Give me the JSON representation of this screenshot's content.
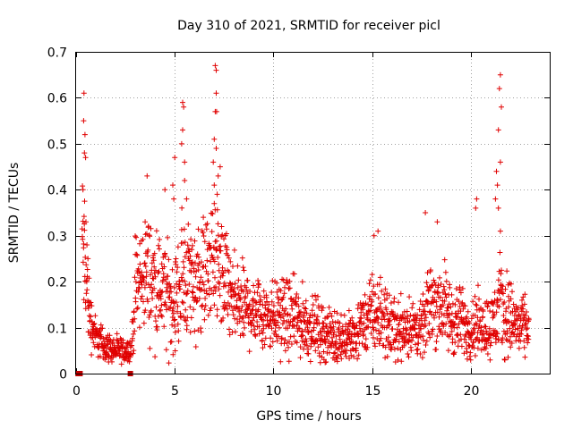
{
  "chart_data": {
    "type": "scatter",
    "title": "Day 310 of 2021, SRMTID for receiver picl",
    "xlabel": "GPS time / hours",
    "ylabel": "SRMTID / TECUs",
    "xlim": [
      0,
      24
    ],
    "ylim": [
      0,
      0.7
    ],
    "xticks": [
      0,
      5,
      10,
      15,
      20
    ],
    "xtick_labels": [
      "0",
      "5",
      "10",
      "15",
      "20"
    ],
    "yticks": [
      0,
      0.1,
      0.2,
      0.3,
      0.4,
      0.5,
      0.6,
      0.7
    ],
    "ytick_labels": [
      "0",
      "0.1",
      "0.2",
      "0.3",
      "0.4",
      "0.5",
      "0.6",
      "0.7"
    ],
    "grid": true,
    "marker": "plus",
    "color": "#e00000",
    "square_marker_color": "#c00000",
    "zero_squares_x": [
      0.1,
      0.15,
      0.2,
      2.75
    ],
    "envelope": {
      "x": [
        0.0,
        0.3,
        0.5,
        0.7,
        1.0,
        1.5,
        2.0,
        2.5,
        2.8,
        3.0,
        3.5,
        4.0,
        4.5,
        5.0,
        5.5,
        6.0,
        6.5,
        7.0,
        7.5,
        8.0,
        9.0,
        10.0,
        11.0,
        12.0,
        13.0,
        14.0,
        15.0,
        15.5,
        16.0,
        17.0,
        17.5,
        18.0,
        18.5,
        19.0,
        20.0,
        20.5,
        21.0,
        21.5,
        22.0,
        22.5,
        23.0
      ],
      "center": [
        0.0,
        0.3,
        0.2,
        0.12,
        0.08,
        0.06,
        0.05,
        0.05,
        0.05,
        0.18,
        0.22,
        0.2,
        0.17,
        0.15,
        0.22,
        0.2,
        0.22,
        0.25,
        0.2,
        0.15,
        0.14,
        0.13,
        0.12,
        0.1,
        0.08,
        0.08,
        0.13,
        0.12,
        0.1,
        0.1,
        0.09,
        0.16,
        0.15,
        0.12,
        0.1,
        0.11,
        0.1,
        0.15,
        0.12,
        0.1,
        0.1
      ],
      "spread": [
        0.0,
        0.12,
        0.09,
        0.05,
        0.03,
        0.025,
        0.02,
        0.02,
        0.02,
        0.08,
        0.09,
        0.09,
        0.08,
        0.08,
        0.1,
        0.09,
        0.09,
        0.1,
        0.09,
        0.07,
        0.06,
        0.06,
        0.06,
        0.05,
        0.04,
        0.04,
        0.06,
        0.06,
        0.05,
        0.05,
        0.04,
        0.07,
        0.07,
        0.06,
        0.05,
        0.05,
        0.05,
        0.08,
        0.06,
        0.05,
        0.04
      ]
    },
    "peaks": [
      {
        "x": 0.4,
        "y": 0.61
      },
      {
        "x": 0.38,
        "y": 0.55
      },
      {
        "x": 0.45,
        "y": 0.52
      },
      {
        "x": 0.42,
        "y": 0.48
      },
      {
        "x": 0.48,
        "y": 0.47
      },
      {
        "x": 0.35,
        "y": 0.4
      },
      {
        "x": 0.43,
        "y": 0.375
      },
      {
        "x": 0.5,
        "y": 0.33
      },
      {
        "x": 0.55,
        "y": 0.28
      },
      {
        "x": 0.6,
        "y": 0.25
      },
      {
        "x": 3.6,
        "y": 0.43
      },
      {
        "x": 3.5,
        "y": 0.33
      },
      {
        "x": 4.5,
        "y": 0.4
      },
      {
        "x": 4.9,
        "y": 0.41
      },
      {
        "x": 5.0,
        "y": 0.47
      },
      {
        "x": 4.95,
        "y": 0.38
      },
      {
        "x": 5.4,
        "y": 0.59
      },
      {
        "x": 5.45,
        "y": 0.58
      },
      {
        "x": 5.4,
        "y": 0.53
      },
      {
        "x": 5.35,
        "y": 0.5
      },
      {
        "x": 5.5,
        "y": 0.46
      },
      {
        "x": 5.5,
        "y": 0.42
      },
      {
        "x": 5.6,
        "y": 0.38
      },
      {
        "x": 7.05,
        "y": 0.67
      },
      {
        "x": 7.1,
        "y": 0.66
      },
      {
        "x": 7.1,
        "y": 0.61
      },
      {
        "x": 7.05,
        "y": 0.57
      },
      {
        "x": 7.12,
        "y": 0.57
      },
      {
        "x": 7.0,
        "y": 0.51
      },
      {
        "x": 7.1,
        "y": 0.49
      },
      {
        "x": 6.95,
        "y": 0.46
      },
      {
        "x": 7.3,
        "y": 0.45
      },
      {
        "x": 7.2,
        "y": 0.43
      },
      {
        "x": 7.0,
        "y": 0.41
      },
      {
        "x": 7.15,
        "y": 0.39
      },
      {
        "x": 7.0,
        "y": 0.37
      },
      {
        "x": 15.1,
        "y": 0.3
      },
      {
        "x": 15.3,
        "y": 0.31
      },
      {
        "x": 17.7,
        "y": 0.35
      },
      {
        "x": 18.3,
        "y": 0.33
      },
      {
        "x": 20.3,
        "y": 0.38
      },
      {
        "x": 20.25,
        "y": 0.36
      },
      {
        "x": 21.5,
        "y": 0.65
      },
      {
        "x": 21.45,
        "y": 0.62
      },
      {
        "x": 21.55,
        "y": 0.58
      },
      {
        "x": 21.4,
        "y": 0.53
      },
      {
        "x": 21.5,
        "y": 0.46
      },
      {
        "x": 21.3,
        "y": 0.44
      },
      {
        "x": 21.35,
        "y": 0.41
      },
      {
        "x": 21.25,
        "y": 0.38
      },
      {
        "x": 21.4,
        "y": 0.36
      },
      {
        "x": 21.5,
        "y": 0.31
      }
    ]
  }
}
